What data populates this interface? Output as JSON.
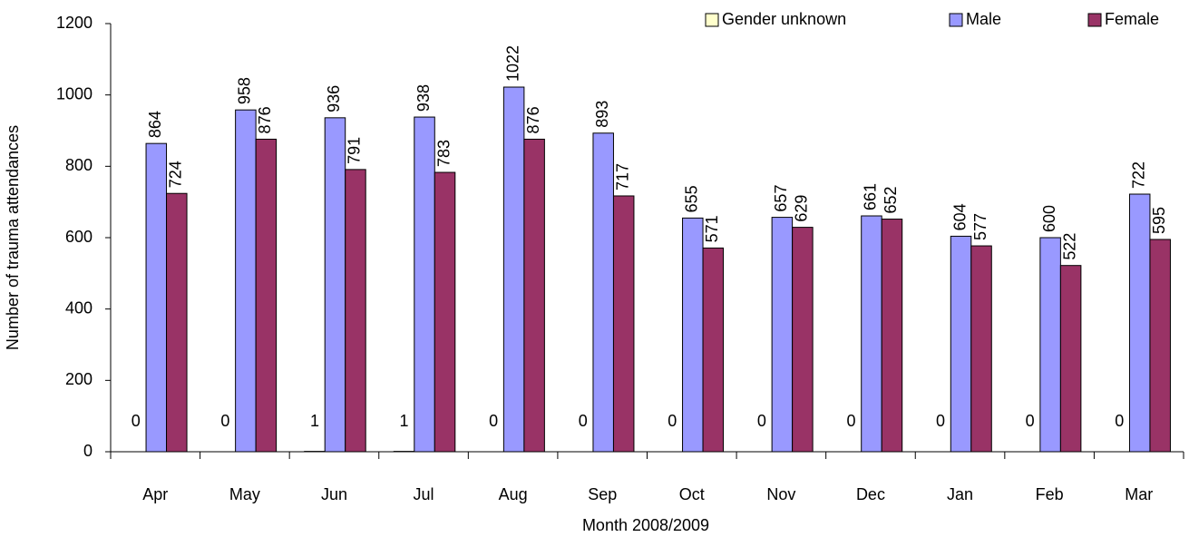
{
  "chart_data": {
    "type": "bar",
    "x_label": "Month 2008/2009",
    "y_label": "Number of trauma attendances",
    "categories": [
      "Apr",
      "May",
      "Jun",
      "Jul",
      "Aug",
      "Sep",
      "Oct",
      "Nov",
      "Dec",
      "Jan",
      "Feb",
      "Mar"
    ],
    "series": [
      {
        "name": "Gender unknown",
        "color": "#ffffcc",
        "values": [
          0,
          0,
          1,
          1,
          0,
          0,
          0,
          0,
          0,
          0,
          0,
          0
        ]
      },
      {
        "name": "Male",
        "color": "#9999ff",
        "values": [
          864,
          958,
          936,
          938,
          1022,
          893,
          655,
          657,
          661,
          604,
          600,
          722
        ]
      },
      {
        "name": "Female",
        "color": "#993366",
        "values": [
          724,
          876,
          791,
          783,
          876,
          717,
          571,
          629,
          652,
          577,
          522,
          595
        ]
      }
    ],
    "ylim": [
      0,
      1200
    ],
    "yticks": [
      0,
      200,
      400,
      600,
      800,
      1000,
      1200
    ],
    "grid": false,
    "legend": "top-right"
  }
}
